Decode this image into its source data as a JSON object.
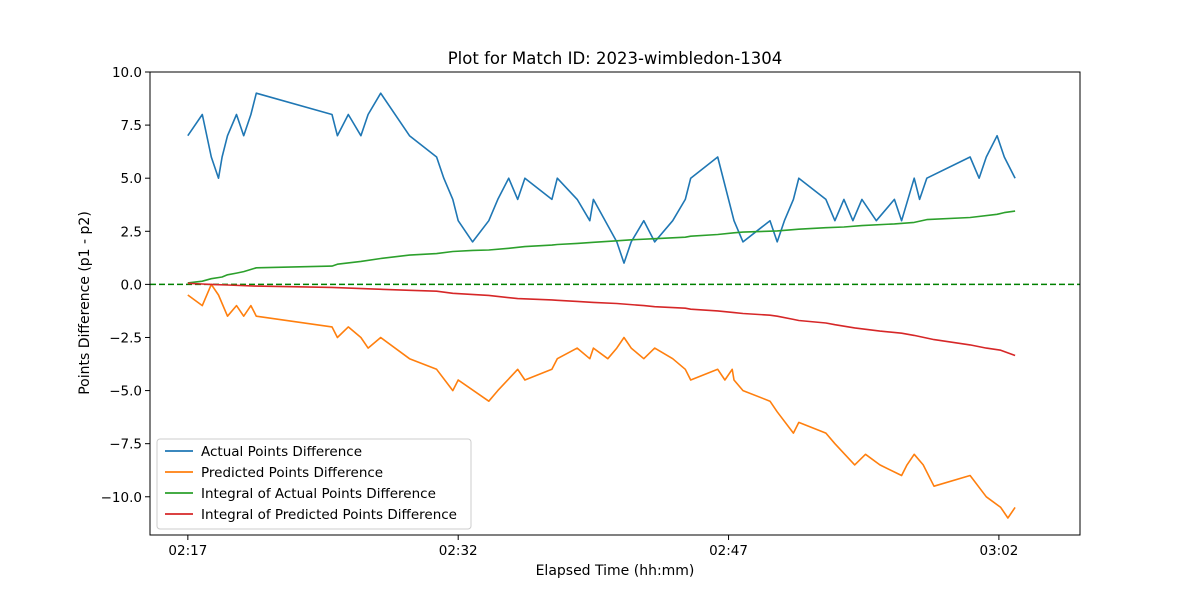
{
  "chart_data": {
    "type": "line",
    "title": "Plot for Match ID: 2023-wimbledon-1304",
    "xlabel": "Elapsed Time (hh:mm)",
    "ylabel": "Points Difference (p1 - p2)",
    "x_unit": "minutes",
    "xlim": [
      -2.1,
      49.5
    ],
    "ylim": [
      -11.8,
      10.0
    ],
    "x_ticks": [
      {
        "value": 0,
        "label": "02:17"
      },
      {
        "value": 15,
        "label": "02:32"
      },
      {
        "value": 30,
        "label": "02:47"
      },
      {
        "value": 45,
        "label": "03:02"
      }
    ],
    "y_ticks": [
      {
        "value": 10.0,
        "label": "10.0"
      },
      {
        "value": 7.5,
        "label": "7.5"
      },
      {
        "value": 5.0,
        "label": "5.0"
      },
      {
        "value": 2.5,
        "label": "2.5"
      },
      {
        "value": 0.0,
        "label": "0.0"
      },
      {
        "value": -2.5,
        "label": "−2.5"
      },
      {
        "value": -5.0,
        "label": "−5.0"
      },
      {
        "value": -7.5,
        "label": "−7.5"
      },
      {
        "value": -10.0,
        "label": "−10.0"
      }
    ],
    "reference_line": {
      "y": 0,
      "color": "#008000",
      "style": "dashed"
    },
    "grid": false,
    "legend_position": "lower-left",
    "series": [
      {
        "name": "Actual Points Difference",
        "color": "#1f77b4",
        "points": [
          [
            0,
            7
          ],
          [
            0.8,
            8
          ],
          [
            1.3,
            6
          ],
          [
            1.7,
            5
          ],
          [
            1.9,
            6
          ],
          [
            2.2,
            7
          ],
          [
            2.7,
            8
          ],
          [
            3.1,
            7
          ],
          [
            3.5,
            8
          ],
          [
            3.8,
            9
          ],
          [
            8,
            8
          ],
          [
            8.3,
            7
          ],
          [
            8.9,
            8
          ],
          [
            9.6,
            7
          ],
          [
            10,
            8
          ],
          [
            10.7,
            9
          ],
          [
            12.3,
            7
          ],
          [
            13.8,
            6
          ],
          [
            14.2,
            5
          ],
          [
            14.7,
            4
          ],
          [
            15,
            3
          ],
          [
            15.8,
            2
          ],
          [
            16.7,
            3
          ],
          [
            17.2,
            4
          ],
          [
            17.8,
            5
          ],
          [
            18.3,
            4
          ],
          [
            18.7,
            5
          ],
          [
            20.2,
            4
          ],
          [
            20.5,
            5
          ],
          [
            21.6,
            4
          ],
          [
            22.3,
            3
          ],
          [
            22.5,
            4
          ],
          [
            23.8,
            2
          ],
          [
            24.2,
            1
          ],
          [
            24.6,
            2
          ],
          [
            25.3,
            3
          ],
          [
            25.9,
            2
          ],
          [
            26.9,
            3
          ],
          [
            27.6,
            4
          ],
          [
            27.9,
            5
          ],
          [
            29.4,
            6
          ],
          [
            30.3,
            3
          ],
          [
            30.8,
            2
          ],
          [
            32.3,
            3
          ],
          [
            32.7,
            2
          ],
          [
            33.1,
            3
          ],
          [
            33.6,
            4
          ],
          [
            33.9,
            5
          ],
          [
            35.4,
            4
          ],
          [
            35.9,
            3
          ],
          [
            36.4,
            4
          ],
          [
            36.9,
            3
          ],
          [
            37.4,
            4
          ],
          [
            38.2,
            3
          ],
          [
            39.2,
            4
          ],
          [
            39.6,
            3
          ],
          [
            40.3,
            5
          ],
          [
            40.6,
            4
          ],
          [
            41,
            5
          ],
          [
            43.4,
            6
          ],
          [
            43.9,
            5
          ],
          [
            44.3,
            6
          ],
          [
            44.9,
            7
          ],
          [
            45.3,
            6
          ],
          [
            45.9,
            5
          ]
        ]
      },
      {
        "name": "Predicted Points Difference",
        "color": "#ff7f0e",
        "points": [
          [
            0,
            -0.5
          ],
          [
            0.8,
            -1
          ],
          [
            1.3,
            0
          ],
          [
            1.7,
            -0.5
          ],
          [
            2.2,
            -1.5
          ],
          [
            2.7,
            -1
          ],
          [
            3.1,
            -1.5
          ],
          [
            3.5,
            -1
          ],
          [
            3.8,
            -1.5
          ],
          [
            8,
            -2
          ],
          [
            8.3,
            -2.5
          ],
          [
            8.9,
            -2
          ],
          [
            9.6,
            -2.5
          ],
          [
            10,
            -3
          ],
          [
            10.7,
            -2.5
          ],
          [
            12.3,
            -3.5
          ],
          [
            13.8,
            -4
          ],
          [
            14.7,
            -5
          ],
          [
            15,
            -4.5
          ],
          [
            16.7,
            -5.5
          ],
          [
            17.2,
            -5
          ],
          [
            18.3,
            -4
          ],
          [
            18.7,
            -4.5
          ],
          [
            20.2,
            -4
          ],
          [
            20.5,
            -3.5
          ],
          [
            21.6,
            -3
          ],
          [
            22.3,
            -3.5
          ],
          [
            22.5,
            -3
          ],
          [
            23.3,
            -3.5
          ],
          [
            23.8,
            -3
          ],
          [
            24.2,
            -2.5
          ],
          [
            24.6,
            -3
          ],
          [
            25.3,
            -3.5
          ],
          [
            25.9,
            -3
          ],
          [
            26.9,
            -3.5
          ],
          [
            27.6,
            -4
          ],
          [
            27.9,
            -4.5
          ],
          [
            29.4,
            -4
          ],
          [
            29.8,
            -4.5
          ],
          [
            30.2,
            -4
          ],
          [
            30.3,
            -4.5
          ],
          [
            30.8,
            -5
          ],
          [
            32.3,
            -5.5
          ],
          [
            32.7,
            -6
          ],
          [
            33.6,
            -7
          ],
          [
            33.9,
            -6.5
          ],
          [
            35.4,
            -7
          ],
          [
            35.9,
            -7.5
          ],
          [
            37.0,
            -8.5
          ],
          [
            37.6,
            -8
          ],
          [
            38.4,
            -8.5
          ],
          [
            39.6,
            -9
          ],
          [
            39.9,
            -8.5
          ],
          [
            40.3,
            -8
          ],
          [
            40.8,
            -8.5
          ],
          [
            41.4,
            -9.5
          ],
          [
            43.4,
            -9
          ],
          [
            44.3,
            -10
          ],
          [
            45.1,
            -10.5
          ],
          [
            45.5,
            -11
          ],
          [
            45.9,
            -10.5
          ]
        ]
      },
      {
        "name": "Integral of Actual Points Difference",
        "color": "#2ca02c",
        "points": [
          [
            0,
            0.07
          ],
          [
            0.8,
            0.15
          ],
          [
            1.3,
            0.27
          ],
          [
            1.9,
            0.35
          ],
          [
            2.2,
            0.45
          ],
          [
            2.7,
            0.53
          ],
          [
            3.1,
            0.6
          ],
          [
            3.8,
            0.78
          ],
          [
            8,
            0.86
          ],
          [
            8.3,
            0.95
          ],
          [
            9.6,
            1.08
          ],
          [
            10.7,
            1.22
          ],
          [
            12.3,
            1.38
          ],
          [
            13.8,
            1.45
          ],
          [
            14.7,
            1.55
          ],
          [
            15.8,
            1.6
          ],
          [
            16.7,
            1.62
          ],
          [
            17.8,
            1.7
          ],
          [
            18.7,
            1.78
          ],
          [
            20.2,
            1.85
          ],
          [
            20.5,
            1.88
          ],
          [
            21.6,
            1.93
          ],
          [
            22.5,
            1.98
          ],
          [
            23.8,
            2.05
          ],
          [
            24.6,
            2.1
          ],
          [
            25.9,
            2.15
          ],
          [
            27.6,
            2.22
          ],
          [
            27.9,
            2.27
          ],
          [
            29.4,
            2.35
          ],
          [
            30.3,
            2.43
          ],
          [
            30.8,
            2.46
          ],
          [
            32.7,
            2.52
          ],
          [
            33.9,
            2.6
          ],
          [
            35.4,
            2.67
          ],
          [
            36.4,
            2.7
          ],
          [
            37.4,
            2.77
          ],
          [
            39.2,
            2.85
          ],
          [
            40.3,
            2.92
          ],
          [
            41,
            3.05
          ],
          [
            43.4,
            3.15
          ],
          [
            44.9,
            3.3
          ],
          [
            45.3,
            3.38
          ],
          [
            45.9,
            3.45
          ]
        ]
      },
      {
        "name": "Integral of Predicted Points Difference",
        "color": "#d62728",
        "points": [
          [
            0,
            0.05
          ],
          [
            0.8,
            0.02
          ],
          [
            1.3,
            0
          ],
          [
            2.2,
            -0.03
          ],
          [
            3.8,
            -0.08
          ],
          [
            8,
            -0.14
          ],
          [
            10,
            -0.21
          ],
          [
            12.3,
            -0.28
          ],
          [
            13.8,
            -0.32
          ],
          [
            14.7,
            -0.42
          ],
          [
            16.7,
            -0.52
          ],
          [
            18.3,
            -0.67
          ],
          [
            20.2,
            -0.73
          ],
          [
            20.5,
            -0.75
          ],
          [
            21.6,
            -0.8
          ],
          [
            22.5,
            -0.85
          ],
          [
            23.8,
            -0.9
          ],
          [
            25.3,
            -1.0
          ],
          [
            25.9,
            -1.05
          ],
          [
            27.6,
            -1.12
          ],
          [
            27.9,
            -1.17
          ],
          [
            29.4,
            -1.25
          ],
          [
            30.3,
            -1.33
          ],
          [
            30.8,
            -1.37
          ],
          [
            32.3,
            -1.45
          ],
          [
            32.7,
            -1.5
          ],
          [
            33.6,
            -1.65
          ],
          [
            33.9,
            -1.7
          ],
          [
            35.4,
            -1.82
          ],
          [
            35.9,
            -1.9
          ],
          [
            37.0,
            -2.05
          ],
          [
            38.4,
            -2.2
          ],
          [
            39.6,
            -2.3
          ],
          [
            40.3,
            -2.4
          ],
          [
            41.4,
            -2.6
          ],
          [
            43.4,
            -2.85
          ],
          [
            44.3,
            -3.0
          ],
          [
            45.1,
            -3.1
          ],
          [
            45.9,
            -3.35
          ]
        ]
      }
    ]
  }
}
